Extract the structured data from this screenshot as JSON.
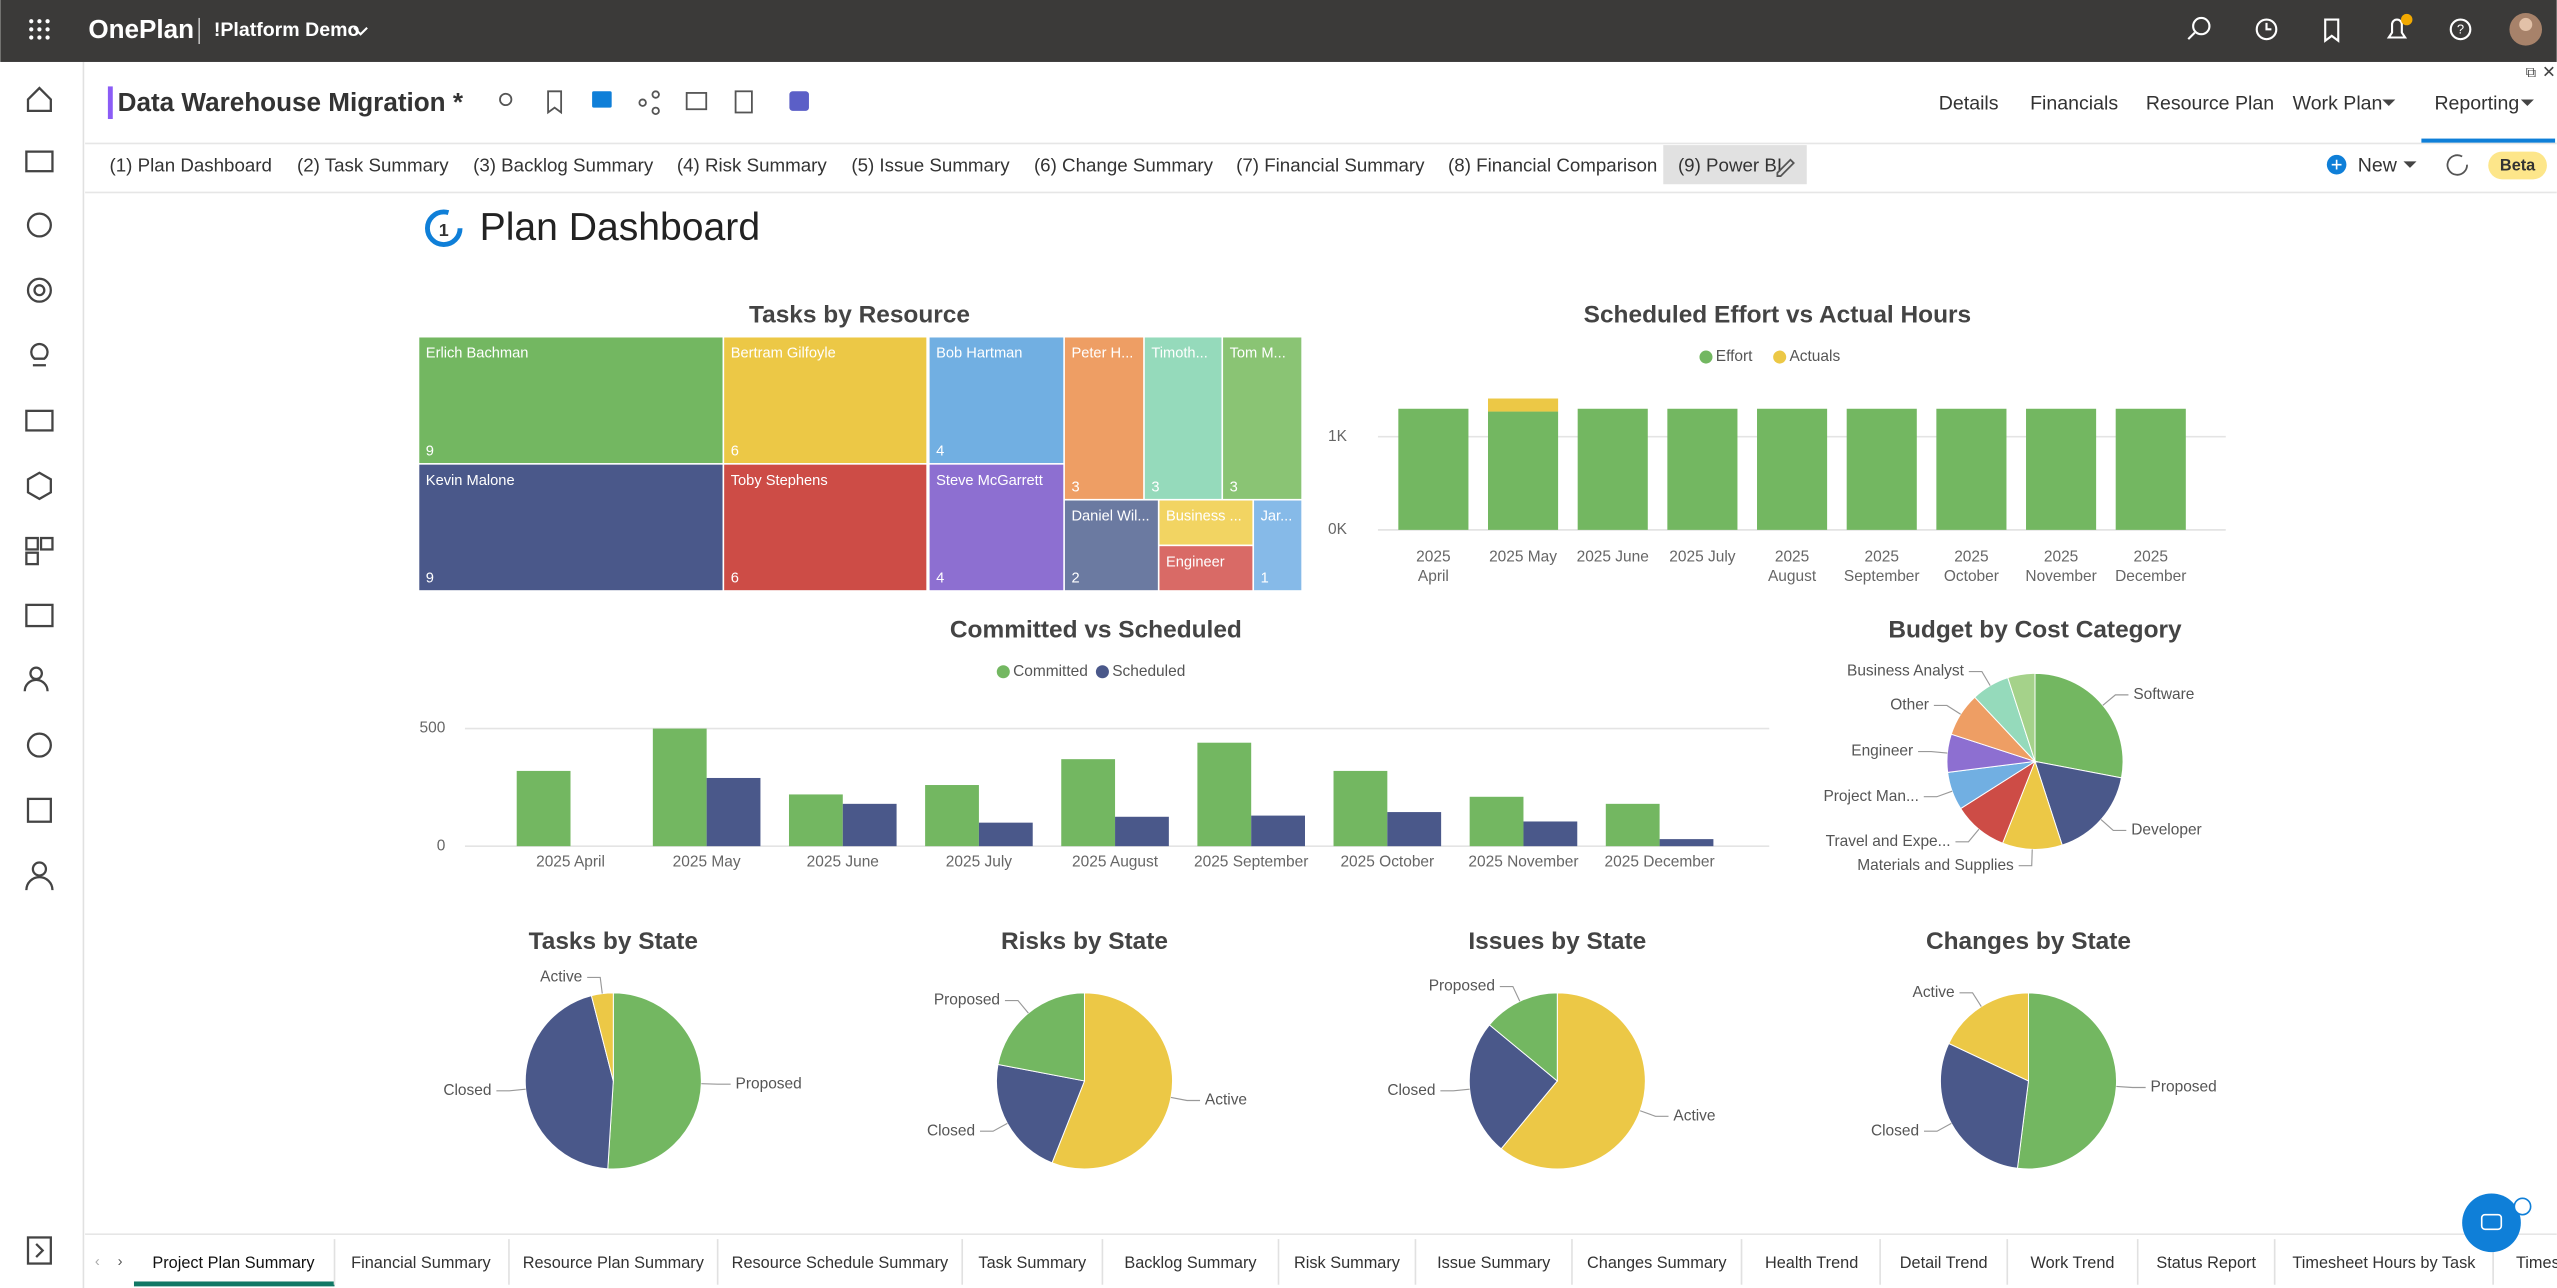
{
  "header": {
    "app_name": "OnePlan",
    "workspace": "!Platform Demo"
  },
  "project": {
    "title": "Data Warehouse Migration *",
    "nav": [
      "Details",
      "Financials",
      "Resource Plan",
      "Work Plan",
      "Reporting"
    ]
  },
  "report_tabs": [
    "(1) Plan Dashboard",
    "(2) Task Summary",
    "(3) Backlog Summary",
    "(4) Risk Summary",
    "(5) Issue Summary",
    "(6) Change Summary",
    "(7) Financial Summary",
    "(8) Financial Comparison",
    "(9) Power BI"
  ],
  "actions": {
    "new": "New",
    "beta": "Beta"
  },
  "dashboard": {
    "title": "Plan Dashboard",
    "charts": [
      {
        "type": "treemap",
        "title": "Tasks by Resource",
        "categories": [
          "Erlich Bachman",
          "Kevin Malone",
          "Bertram Gilfoyle",
          "Toby Stephens",
          "Bob Hartman",
          "Steve McGarrett",
          "Peter H...",
          "Timoth...",
          "Tom M...",
          "Daniel Wil...",
          "Business ...",
          "Engineer",
          "Jar..."
        ],
        "values": [
          9,
          9,
          6,
          6,
          4,
          4,
          3,
          3,
          3,
          2,
          1,
          1,
          1
        ],
        "colors": [
          "#73b761",
          "#4a588a",
          "#ecc846",
          "#cd4c46",
          "#71afe2",
          "#8d6fd1",
          "#ee9e64",
          "#95dabb",
          "#8ac474",
          "#6b7aa1",
          "#f2d462",
          "#d96a66",
          "#86bae8"
        ]
      },
      {
        "type": "stacked_bar",
        "title": "Scheduled Effort vs Actual Hours",
        "categories": [
          "2025 April",
          "2025 May",
          "2025 June",
          "2025 July",
          "2025 August",
          "2025 September",
          "2025 October",
          "2025 November",
          "2025 December"
        ],
        "series": [
          {
            "name": "Effort",
            "color": "#73b761",
            "values": [
              1300,
              1270,
              1300,
              1300,
              1300,
              1300,
              1300,
              1300,
              1300
            ]
          },
          {
            "name": "Actuals",
            "color": "#ecc846",
            "values": [
              0,
              140,
              0,
              0,
              0,
              0,
              0,
              0,
              0
            ]
          }
        ],
        "ylim": [
          0,
          1400
        ],
        "yticks": [
          {
            "value": 0,
            "label": "0K"
          },
          {
            "value": 1000,
            "label": "1K"
          }
        ],
        "grid": true
      },
      {
        "type": "bar",
        "title": "Committed vs Scheduled",
        "categories": [
          "2025 April",
          "2025 May",
          "2025 June",
          "2025 July",
          "2025 August",
          "2025 September",
          "2025 October",
          "2025 November",
          "2025 December"
        ],
        "series": [
          {
            "name": "Committed",
            "color": "#73b761",
            "values": [
              320,
              500,
              220,
              260,
              370,
              440,
              320,
              210,
              180
            ]
          },
          {
            "name": "Scheduled",
            "color": "#4a588a",
            "values": [
              0,
              290,
              180,
              100,
              125,
              130,
              145,
              105,
              30
            ]
          }
        ],
        "ylim": [
          0,
          520
        ],
        "yticks": [
          0,
          500
        ],
        "grid": true
      },
      {
        "type": "pie",
        "title": "Budget by Cost Category",
        "categories": [
          "Software",
          "Developer",
          "Materials and Supplies",
          "Travel and Expe...",
          "Project Man...",
          "Engineer",
          "Other",
          "Business Analyst",
          null
        ],
        "values": [
          28,
          17,
          11,
          10,
          7,
          7,
          8,
          7,
          5
        ],
        "colors": [
          "#73b761",
          "#4a588a",
          "#ecc846",
          "#cd4c46",
          "#71afe2",
          "#8d6fd1",
          "#ee9e64",
          "#95dabb",
          "#a5d28a"
        ]
      },
      {
        "type": "pie",
        "title": "Tasks by State",
        "categories": [
          "Proposed",
          "Closed",
          "Active"
        ],
        "values": [
          51,
          45,
          4
        ],
        "colors": [
          "#73b761",
          "#4a588a",
          "#ecc846"
        ]
      },
      {
        "type": "pie",
        "title": "Risks by State",
        "categories": [
          "Active",
          "Closed",
          "Proposed"
        ],
        "values": [
          56,
          22,
          22
        ],
        "colors": [
          "#ecc846",
          "#4a588a",
          "#73b761"
        ]
      },
      {
        "type": "pie",
        "title": "Issues by State",
        "categories": [
          "Active",
          "Closed",
          "Proposed"
        ],
        "values": [
          61,
          25,
          14
        ],
        "colors": [
          "#ecc846",
          "#4a588a",
          "#73b761"
        ]
      },
      {
        "type": "pie",
        "title": "Changes by State",
        "categories": [
          "Proposed",
          "Closed",
          "Active"
        ],
        "values": [
          52,
          30,
          18
        ],
        "colors": [
          "#73b761",
          "#4a588a",
          "#ecc846"
        ]
      }
    ]
  },
  "bottom_tabs": [
    "Project Plan Summary",
    "Financial Summary",
    "Resource Plan Summary",
    "Resource Schedule Summary",
    "Task Summary",
    "Backlog Summary",
    "Risk Summary",
    "Issue Summary",
    "Changes Summary",
    "Health Trend",
    "Detail Trend",
    "Work Trend",
    "Status Report",
    "Timesheet Hours by Task",
    "Times"
  ]
}
